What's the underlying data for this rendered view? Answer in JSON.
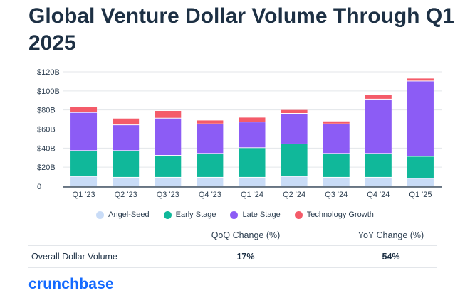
{
  "title": "Global Venture Dollar Volume Through Q1 2025",
  "colors": {
    "angel_seed": "#c9dcf7",
    "early_stage": "#10b89a",
    "late_stage": "#8c5cf5",
    "technology_growth": "#f45b69",
    "gridline": "#e3e6ea",
    "brand": "#146aff"
  },
  "chart_data": {
    "type": "bar",
    "stacked": true,
    "categories": [
      "Q1 '23",
      "Q2 '23",
      "Q3 '23",
      "Q4 '23",
      "Q1 '24",
      "Q2 '24",
      "Q3 '24",
      "Q4 '24",
      "Q1 '25"
    ],
    "series": [
      {
        "name": "Angel-Seed",
        "values": [
          10,
          9,
          9,
          9,
          9,
          10,
          9,
          9,
          8
        ]
      },
      {
        "name": "Early Stage",
        "values": [
          27,
          28,
          23,
          25,
          31,
          34,
          25,
          25,
          23
        ]
      },
      {
        "name": "Late Stage",
        "values": [
          40,
          27,
          39,
          31,
          27,
          32,
          31,
          57,
          79
        ]
      },
      {
        "name": "Technology Growth",
        "values": [
          6,
          7,
          8,
          4,
          5,
          4,
          3,
          5,
          3
        ]
      }
    ],
    "ylim": [
      0,
      120
    ],
    "yticks": [
      0,
      20,
      40,
      60,
      80,
      100,
      120
    ],
    "ytick_labels": [
      "0",
      "$20B",
      "$40B",
      "$60B",
      "$80B",
      "$100B",
      "$120B"
    ],
    "grid": true,
    "legend_position": "bottom-center",
    "xlabel": "",
    "ylabel": ""
  },
  "legend": [
    "Angel-Seed",
    "Early Stage",
    "Late Stage",
    "Technology Growth"
  ],
  "summary": {
    "header_a": "QoQ Change (%)",
    "header_b": "YoY Change (%)",
    "row_label": "Overall Dollar Volume",
    "qoq": "17%",
    "yoy": "54%"
  },
  "brand": "crunchbase"
}
